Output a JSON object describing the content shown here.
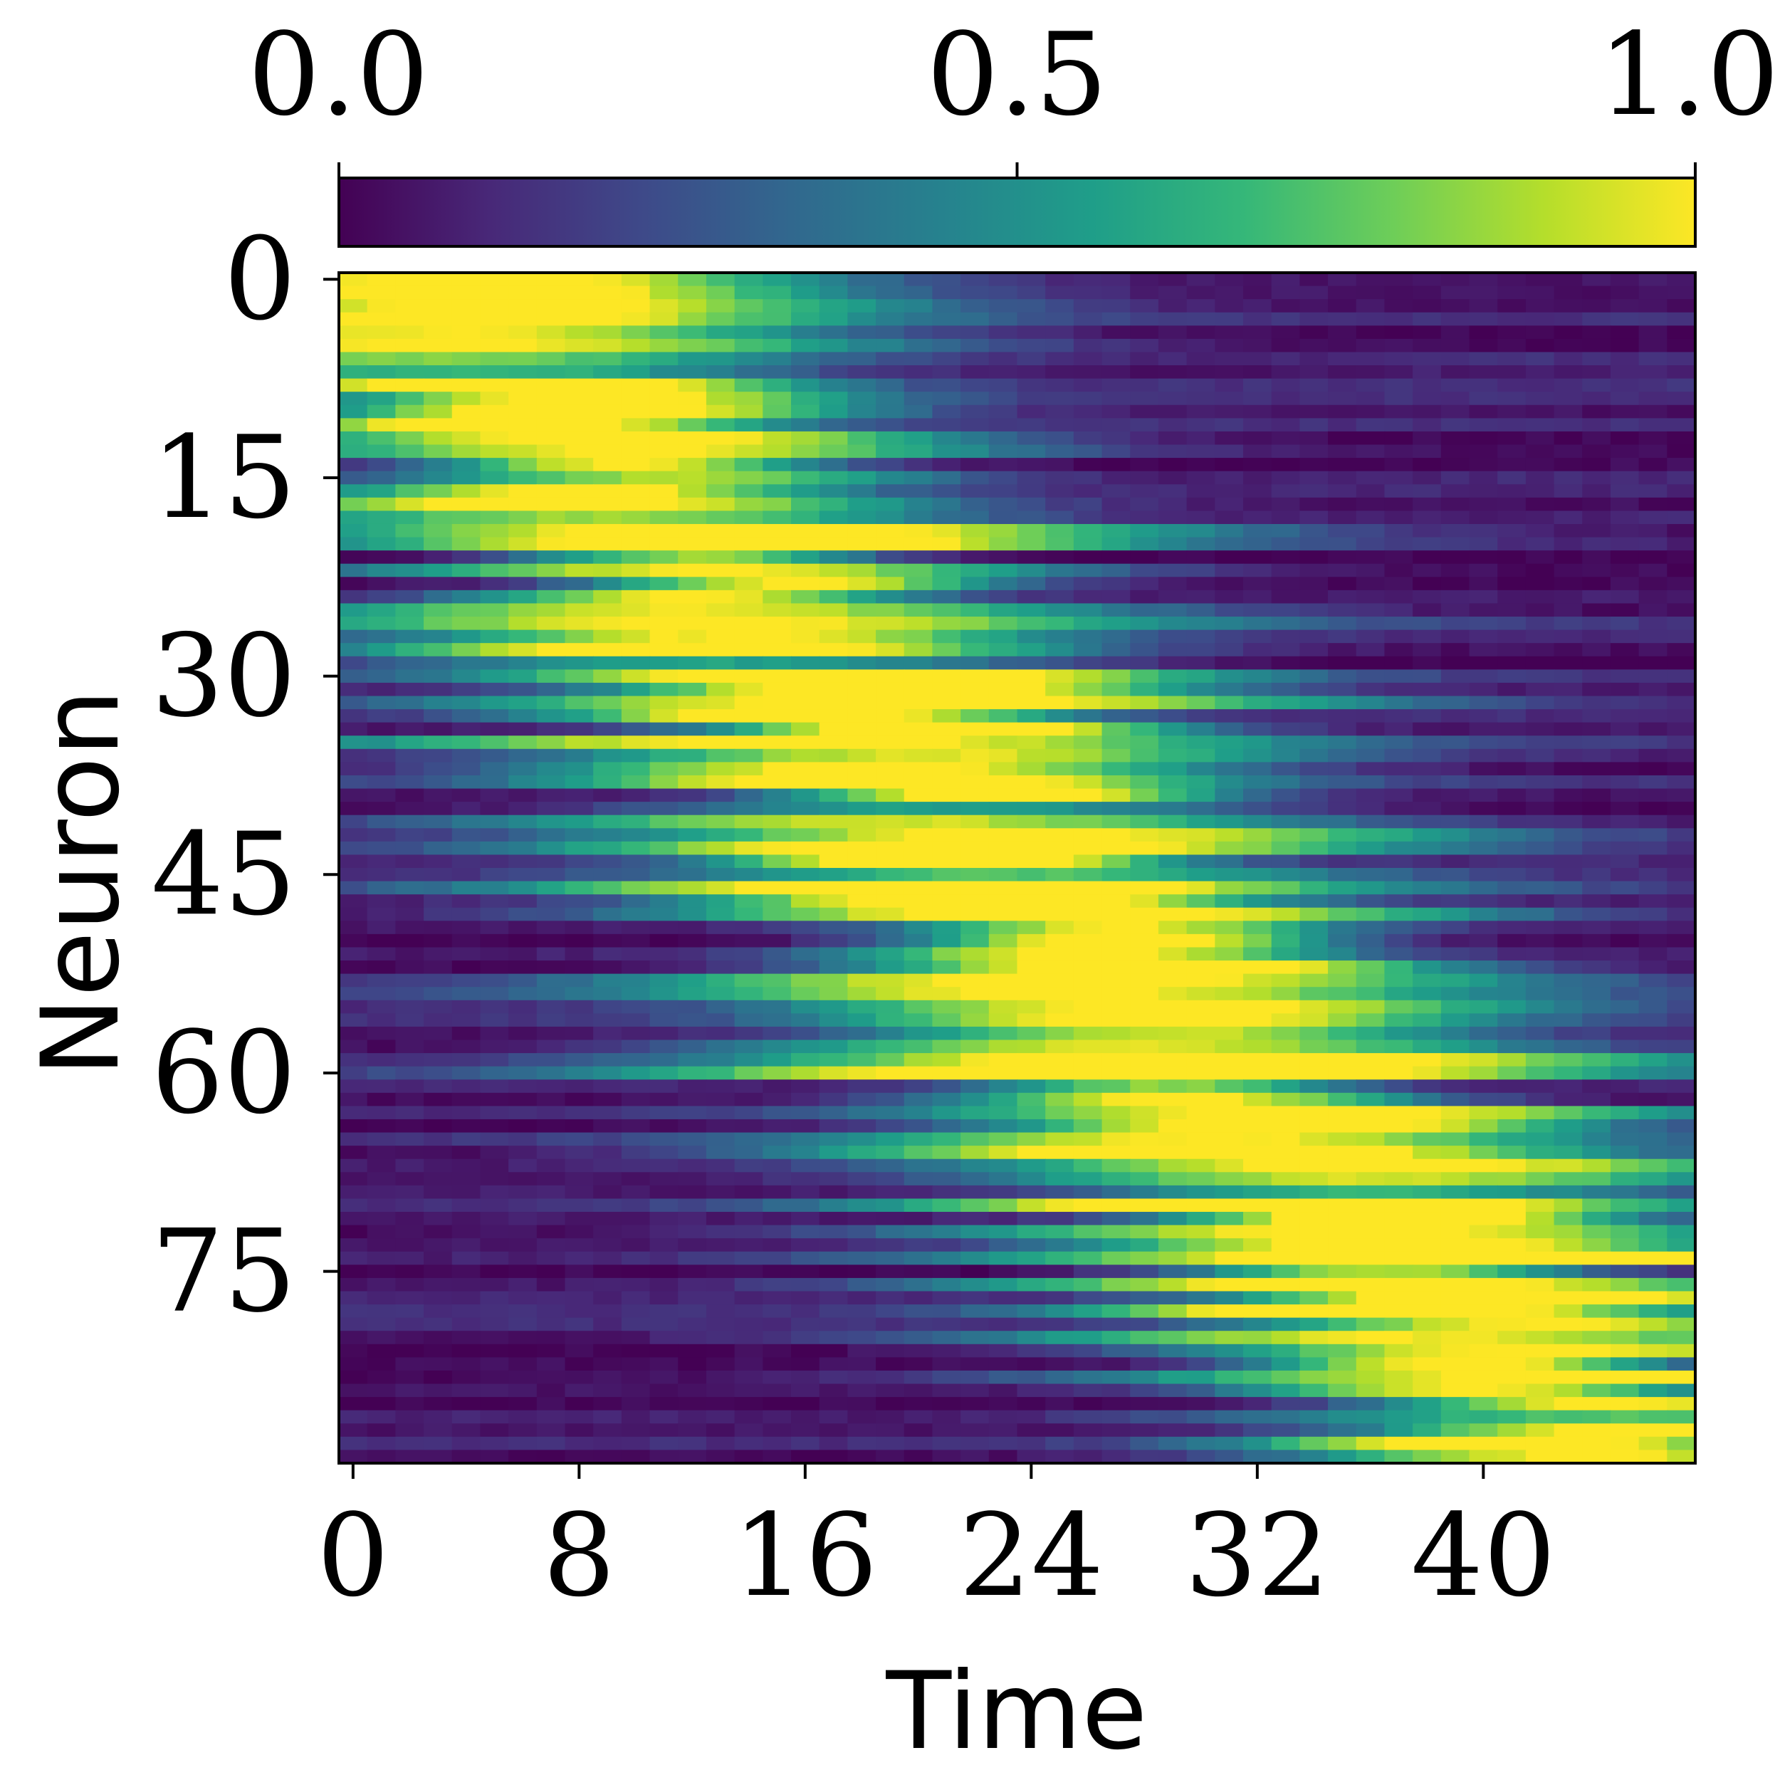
{
  "chart_data": {
    "type": "heatmap",
    "xlabel": "Time",
    "ylabel": "Neuron",
    "n_neurons": 90,
    "n_timesteps": 48,
    "x_ticks": [
      "0",
      "8",
      "16",
      "24",
      "32",
      "40"
    ],
    "y_ticks": [
      "0",
      "15",
      "30",
      "45",
      "60",
      "75"
    ],
    "x_tick_values": [
      0,
      8,
      16,
      24,
      32,
      40
    ],
    "y_tick_values": [
      0,
      15,
      30,
      45,
      60,
      75
    ],
    "value_range": [
      0.0,
      1.0
    ],
    "colormap": "viridis",
    "colorbar": {
      "ticks": [
        "0.0",
        "0.5",
        "1.0"
      ],
      "tick_values": [
        0.0,
        0.5,
        1.0
      ],
      "placement": "top"
    },
    "pattern": "traveling activity wave: each neuron peaks at a time that increases roughly linearly with neuron index; peak near t=2 for neuron 0 and near t=44 for neuron 89",
    "peak_time_start": 2,
    "peak_time_end": 44,
    "colors": [
      "#440154",
      "#482878",
      "#3e4989",
      "#31688e",
      "#26828e",
      "#1f9e89",
      "#35b779",
      "#6ece58",
      "#b5de2b",
      "#fde725"
    ]
  }
}
